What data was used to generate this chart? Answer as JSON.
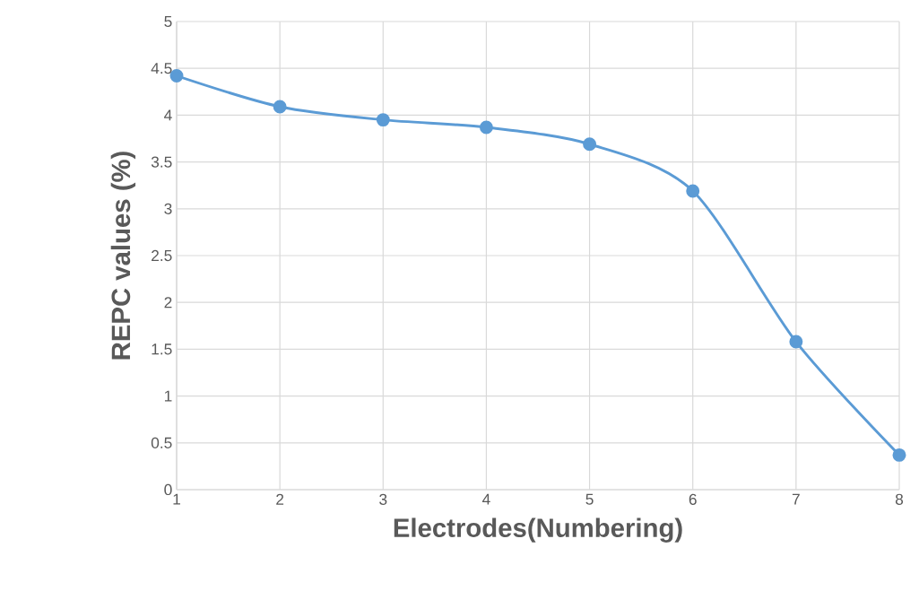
{
  "chart_data": {
    "type": "line",
    "xlabel": "Electrodes(Numbering)",
    "ylabel": "REPC values  (%)",
    "x": [
      1,
      2,
      3,
      4,
      5,
      6,
      7,
      8
    ],
    "series": [
      {
        "color": "#5b9bd5",
        "values": [
          4.42,
          4.09,
          3.95,
          3.87,
          3.69,
          3.19,
          1.58,
          0.37
        ]
      }
    ],
    "xlim": [
      1,
      8
    ],
    "xticks": [
      1,
      2,
      3,
      4,
      5,
      6,
      7,
      8
    ],
    "ylim": [
      0,
      5
    ],
    "yticks": [
      0,
      0.5,
      1,
      1.5,
      2,
      2.5,
      3,
      3.5,
      4,
      4.5,
      5
    ],
    "grid": true,
    "marker": "circle",
    "line_style": "solid"
  }
}
